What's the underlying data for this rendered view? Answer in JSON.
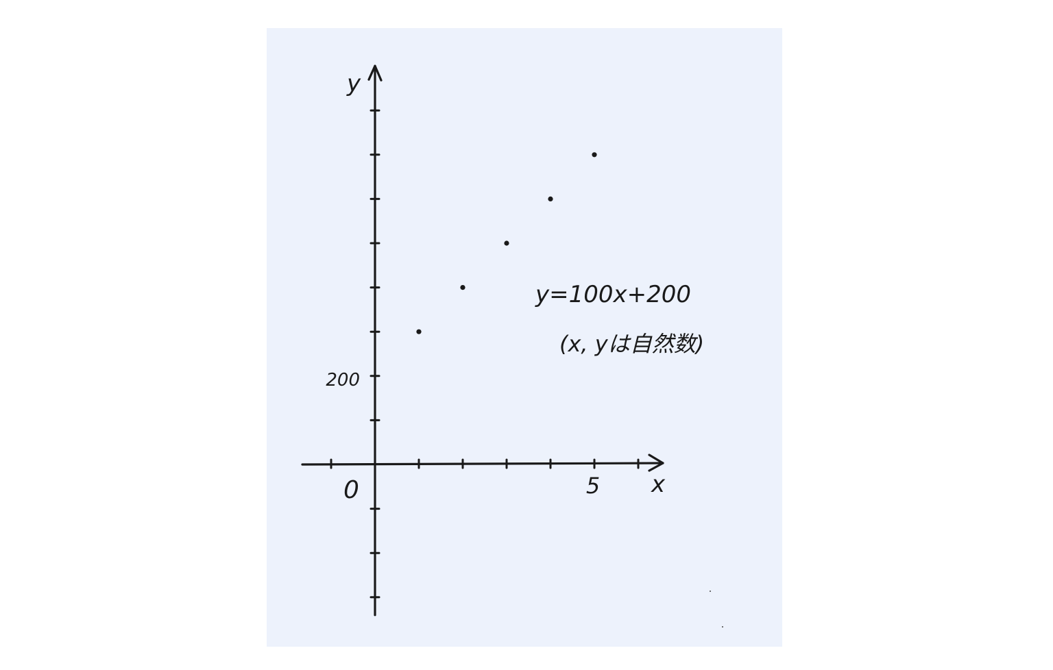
{
  "chart_data": {
    "type": "scatter",
    "title": "",
    "xlabel": "x",
    "ylabel": "y",
    "origin_label": "0",
    "x_tick_labels": [
      {
        "value": 5,
        "label": "5"
      }
    ],
    "y_tick_labels": [
      {
        "value": 200,
        "label": "200"
      }
    ],
    "xlim": [
      -1,
      6.5
    ],
    "ylim": [
      -300,
      800
    ],
    "x_tick_step": 1,
    "y_tick_step": 100,
    "series": [
      {
        "name": "y=100x+200",
        "x": [
          1,
          2,
          3,
          4,
          5
        ],
        "y": [
          300,
          400,
          500,
          600,
          700
        ]
      }
    ],
    "annotations": {
      "equation": "y=100x+200",
      "condition": "(x, yは自然数)"
    },
    "colors": {
      "paper": "#edf2fc",
      "ink": "#1a1a1a"
    }
  }
}
